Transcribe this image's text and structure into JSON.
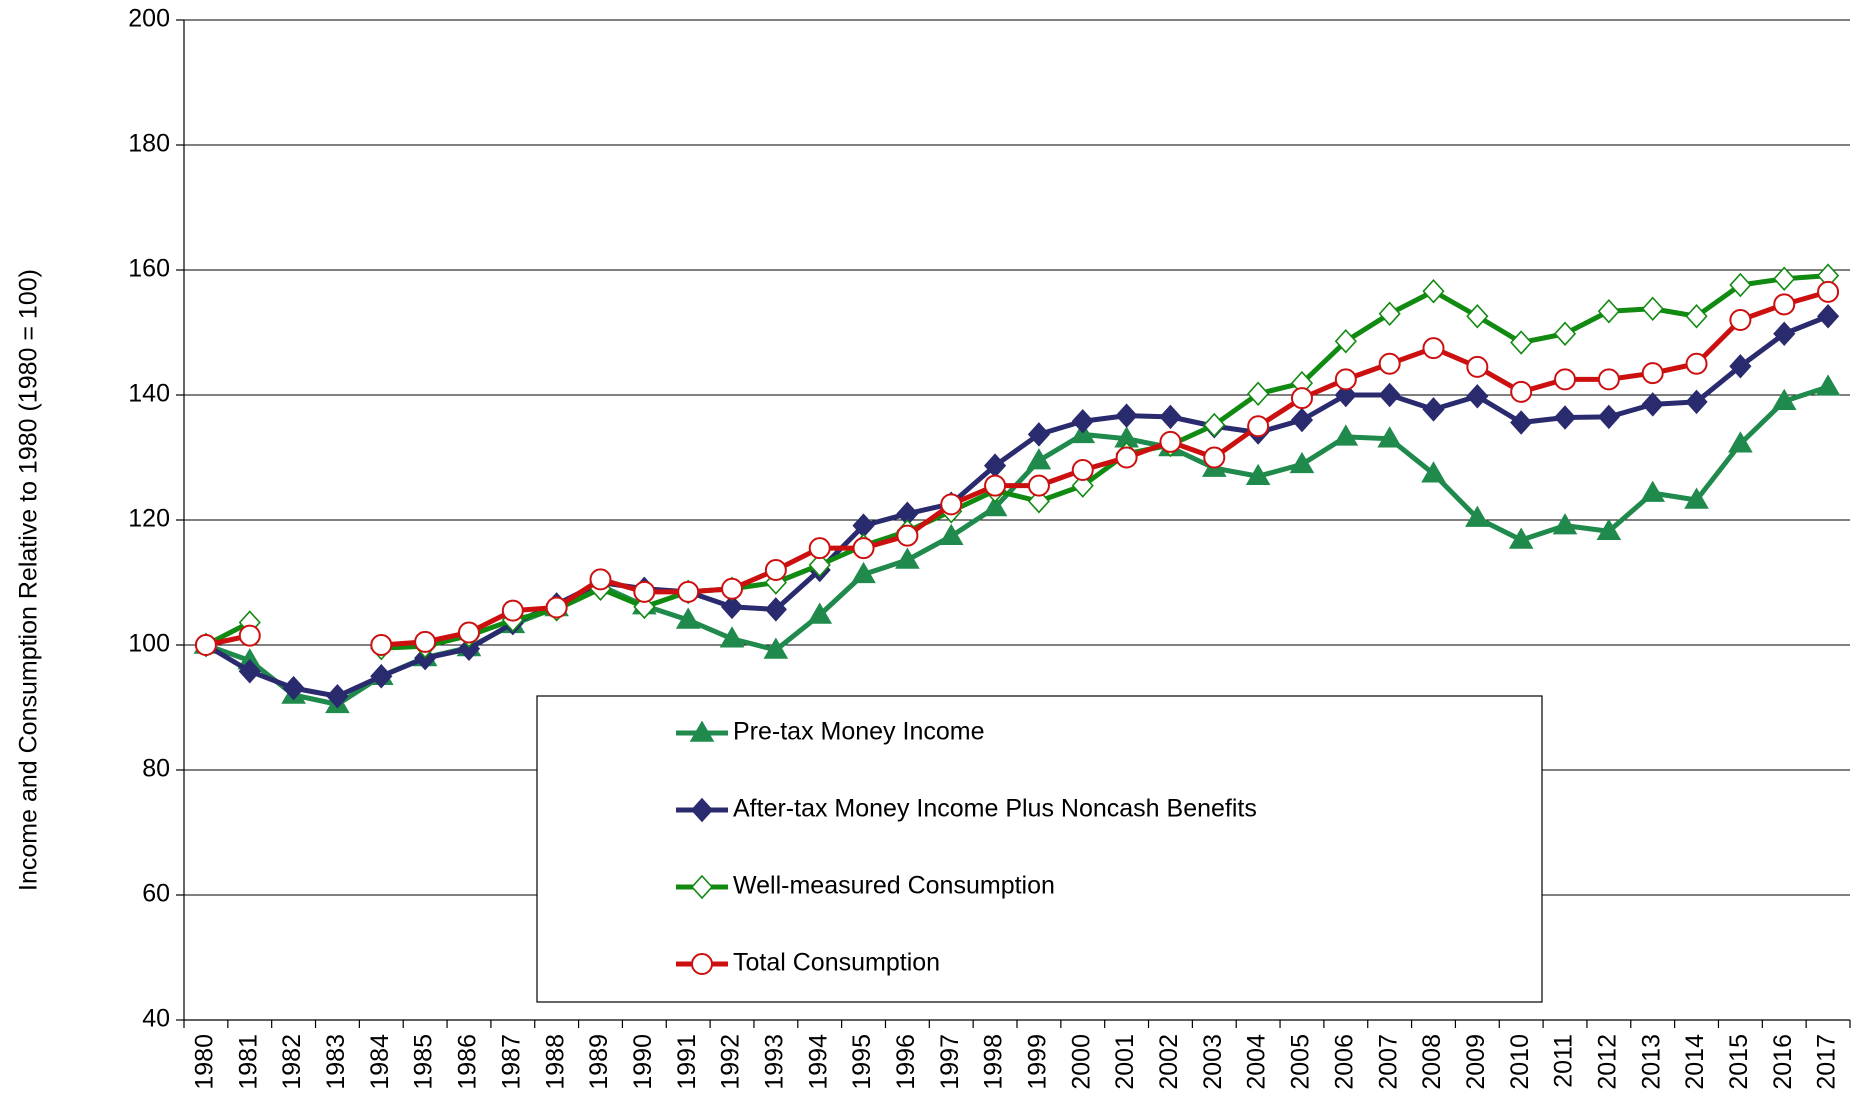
{
  "chart_data": {
    "type": "line",
    "y_label": "Income and Consumption Relative to 1980 (1980 = 100)",
    "categories": [
      "1980",
      "1981",
      "1982",
      "1983",
      "1984",
      "1985",
      "1986",
      "1987",
      "1988",
      "1989",
      "1990",
      "1991",
      "1992",
      "1993",
      "1994",
      "1995",
      "1996",
      "1997",
      "1998",
      "1999",
      "2000",
      "2001",
      "2002",
      "2003",
      "2004",
      "2005",
      "2006",
      "2007",
      "2008",
      "2009",
      "2010",
      "2011",
      "2012",
      "2013",
      "2014",
      "2015",
      "2016",
      "2017"
    ],
    "ylim": [
      40,
      200
    ],
    "yticks": [
      40,
      60,
      80,
      100,
      120,
      140,
      160,
      180,
      200
    ],
    "grid": true,
    "legend": "bottom-center",
    "series": [
      {
        "name": "Pre-tax Money Income",
        "color": "#1f8a4c",
        "marker": "triangle",
        "values": [
          100,
          97.5,
          92,
          90.5,
          95,
          98,
          99.6,
          103.3,
          106,
          109.5,
          106.3,
          104,
          101,
          99.2,
          104.8,
          111.3,
          113.6,
          117.4,
          122,
          129.5,
          133.7,
          133,
          131.6,
          128.3,
          127,
          128.9,
          133.3,
          133,
          127.4,
          120.3,
          116.8,
          119.1,
          118.2,
          124.3,
          123.2,
          132.2,
          139,
          141.3
        ]
      },
      {
        "name": "After-tax Money Income Plus Noncash Benefits",
        "color": "#2a2a6e",
        "marker": "diamond",
        "values": [
          100,
          95.8,
          93.1,
          91.8,
          95,
          97.9,
          99.4,
          103.5,
          106.5,
          110,
          109,
          108.5,
          106.1,
          105.7,
          112,
          119.1,
          121,
          122.6,
          128.7,
          133.7,
          135.8,
          136.7,
          136.5,
          135,
          134,
          136,
          140,
          140,
          137.7,
          139.8,
          135.6,
          136.4,
          136.5,
          138.5,
          138.9,
          144.6,
          149.8,
          152.6
        ]
      },
      {
        "name": "Well-measured Consumption",
        "color": "#118a11",
        "marker": "open-diamond",
        "values": [
          100,
          103.6,
          null,
          null,
          99.5,
          99.8,
          101.5,
          104,
          105.7,
          109,
          106.1,
          108.5,
          109,
          110,
          112.8,
          115.9,
          118.2,
          121.4,
          124.7,
          123,
          125.5,
          130.6,
          132,
          135.2,
          140.2,
          141.9,
          148.6,
          153,
          156.6,
          152.6,
          148.4,
          149.8,
          153.4,
          153.8,
          152.6,
          157.6,
          158.6,
          159.1
        ]
      },
      {
        "name": "Total Consumption",
        "color": "#cc1010",
        "marker": "open-circle",
        "values": [
          100,
          101.5,
          null,
          null,
          100,
          100.5,
          102,
          105.5,
          106,
          110.5,
          108.5,
          108.5,
          109,
          112,
          115.5,
          115.5,
          117.5,
          122.5,
          125.5,
          125.5,
          128,
          130,
          132.5,
          130,
          135,
          139.5,
          142.5,
          145,
          147.5,
          144.5,
          140.5,
          142.5,
          142.5,
          143.5,
          145,
          152,
          154.5,
          156.5
        ]
      }
    ]
  }
}
